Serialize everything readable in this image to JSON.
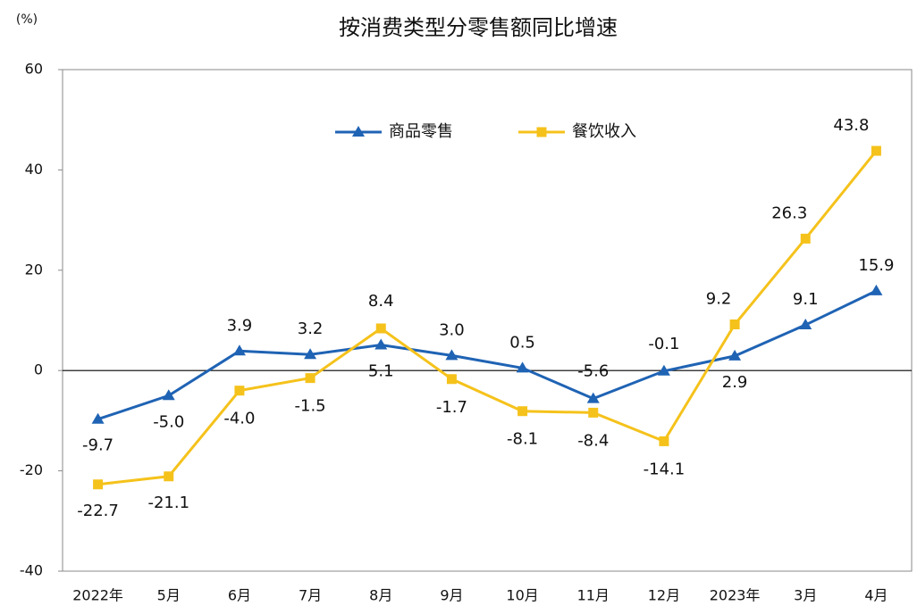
{
  "chart_data": {
    "type": "line",
    "title": "按消费类型分零售额同比增速",
    "y_unit": "(%)",
    "categories": [
      "2022年",
      "5月",
      "6月",
      "7月",
      "8月",
      "9月",
      "10月",
      "11月",
      "12月",
      "2023年",
      "3月",
      "4月"
    ],
    "series": [
      {
        "name": "商品零售",
        "color": "#1f63b4",
        "marker": "triangle",
        "values": [
          -9.7,
          -5.0,
          3.9,
          3.2,
          5.1,
          3.0,
          0.5,
          -5.6,
          -0.1,
          2.9,
          9.1,
          15.9
        ],
        "value_labels": [
          "-9.7",
          "-5.0",
          "3.9",
          "3.2",
          "5.1",
          "3.0",
          "0.5",
          "-5.6",
          "-0.1",
          "2.9",
          "9.1",
          "15.9"
        ]
      },
      {
        "name": "餐饮收入",
        "color": "#f5c21b",
        "marker": "square",
        "values": [
          -22.7,
          -21.1,
          -4.0,
          -1.5,
          8.4,
          -1.7,
          -8.1,
          -8.4,
          -14.1,
          9.2,
          26.3,
          43.8
        ],
        "value_labels": [
          "-22.7",
          "-21.1",
          "-4.0",
          "-1.5",
          "8.4",
          "-1.7",
          "-8.1",
          "-8.4",
          "-14.1",
          "9.2",
          "26.3",
          "43.8"
        ]
      }
    ],
    "ylim": [
      -40,
      60
    ],
    "yticks": [
      -40,
      -20,
      0,
      20,
      40,
      60
    ],
    "grid": false,
    "legend": "top"
  }
}
